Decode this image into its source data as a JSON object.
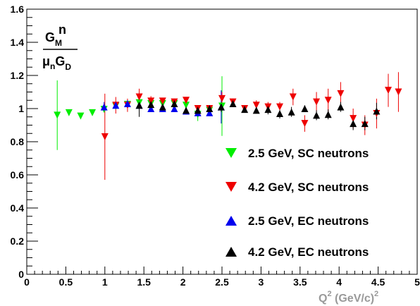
{
  "chart_data": {
    "type": "scatter",
    "title": "",
    "xlabel": {
      "main": "Q",
      "sup1": "2",
      "unit": " (GeV/c)",
      "sup2": "2"
    },
    "ylabel": {
      "num_main": "G",
      "num_sub": "M",
      "num_sup": "n",
      "den_mu": "μ",
      "den_mu_sub": "n",
      "den_main": "G",
      "den_sub": "D"
    },
    "xlim": [
      0,
      5
    ],
    "ylim": [
      0,
      1.6
    ],
    "x_ticks": [
      {
        "v": 0,
        "label": "0"
      },
      {
        "v": 0.5,
        "label": "0.5"
      },
      {
        "v": 1,
        "label": "1"
      },
      {
        "v": 1.5,
        "label": "1.5"
      },
      {
        "v": 2,
        "label": "2"
      },
      {
        "v": 2.5,
        "label": "2.5"
      },
      {
        "v": 3,
        "label": "3"
      },
      {
        "v": 3.5,
        "label": "3.5"
      },
      {
        "v": 4,
        "label": "4"
      },
      {
        "v": 4.5,
        "label": "4.5"
      },
      {
        "v": 5,
        "label": "5"
      }
    ],
    "y_ticks": [
      {
        "v": 0,
        "label": "0"
      },
      {
        "v": 0.2,
        "label": "0.2"
      },
      {
        "v": 0.4,
        "label": "0.4"
      },
      {
        "v": 0.6,
        "label": "0.6"
      },
      {
        "v": 0.8,
        "label": "0.8"
      },
      {
        "v": 1,
        "label": "1"
      },
      {
        "v": 1.2,
        "label": "1.2"
      },
      {
        "v": 1.4,
        "label": "1.4"
      },
      {
        "v": 1.6,
        "label": "1.6"
      }
    ],
    "grid": false,
    "legend_position": "bottom-right",
    "series": [
      {
        "name": "2.5 GeV, SC neutrons",
        "color": "#00ee00",
        "marker": "triangle-down",
        "points": [
          {
            "x": 0.39,
            "y": 0.96,
            "err": 0.21
          },
          {
            "x": 0.54,
            "y": 0.975,
            "err": 0.01
          },
          {
            "x": 0.69,
            "y": 0.955,
            "err": 0.01
          },
          {
            "x": 0.84,
            "y": 0.975,
            "err": 0.01
          },
          {
            "x": 0.99,
            "y": 0.995,
            "err": 0.01
          },
          {
            "x": 1.14,
            "y": 1.015,
            "err": 0.01
          },
          {
            "x": 1.29,
            "y": 1.025,
            "err": 0.01
          },
          {
            "x": 1.44,
            "y": 1.035,
            "err": 0.01
          },
          {
            "x": 1.59,
            "y": 1.03,
            "err": 0.01
          },
          {
            "x": 1.74,
            "y": 1.03,
            "err": 0.01
          },
          {
            "x": 1.89,
            "y": 1.03,
            "err": 0.01
          },
          {
            "x": 2.04,
            "y": 1.02,
            "err": 0.01
          },
          {
            "x": 2.19,
            "y": 0.965,
            "err": 0.04
          },
          {
            "x": 2.34,
            "y": 0.99,
            "err": 0.03
          },
          {
            "x": 2.5,
            "y": 1.015,
            "err": 0.18
          }
        ]
      },
      {
        "name": "4.2 GeV, SC neutrons",
        "color": "#ee0000",
        "marker": "triangle-down",
        "points": [
          {
            "x": 1.0,
            "y": 0.83,
            "err": 0.26
          },
          {
            "x": 1.14,
            "y": 1.02,
            "err": 0.05
          },
          {
            "x": 1.29,
            "y": 1.02,
            "err": 0.04
          },
          {
            "x": 1.44,
            "y": 1.07,
            "err": 0.05
          },
          {
            "x": 1.59,
            "y": 1.045,
            "err": 0.03
          },
          {
            "x": 1.74,
            "y": 1.045,
            "err": 0.02
          },
          {
            "x": 1.89,
            "y": 1.04,
            "err": 0.02
          },
          {
            "x": 2.04,
            "y": 1.05,
            "err": 0.02
          },
          {
            "x": 2.19,
            "y": 1.0,
            "err": 0.02
          },
          {
            "x": 2.34,
            "y": 1.0,
            "err": 0.02
          },
          {
            "x": 2.5,
            "y": 1.06,
            "err": 0.04
          },
          {
            "x": 2.64,
            "y": 1.04,
            "err": 0.02
          },
          {
            "x": 2.79,
            "y": 1.0,
            "err": 0.02
          },
          {
            "x": 2.94,
            "y": 1.02,
            "err": 0.03
          },
          {
            "x": 3.09,
            "y": 1.01,
            "err": 0.03
          },
          {
            "x": 3.24,
            "y": 1.01,
            "err": 0.03
          },
          {
            "x": 3.41,
            "y": 1.07,
            "err": 0.05
          },
          {
            "x": 3.56,
            "y": 0.91,
            "err": 0.05
          },
          {
            "x": 3.71,
            "y": 1.04,
            "err": 0.06
          },
          {
            "x": 3.86,
            "y": 1.05,
            "err": 0.07
          },
          {
            "x": 4.02,
            "y": 1.09,
            "err": 0.07
          },
          {
            "x": 4.18,
            "y": 0.94,
            "err": 0.06
          },
          {
            "x": 4.33,
            "y": 0.9,
            "err": 0.06
          },
          {
            "x": 4.48,
            "y": 0.97,
            "err": 0.09
          },
          {
            "x": 4.63,
            "y": 1.11,
            "err": 0.1
          },
          {
            "x": 4.76,
            "y": 1.1,
            "err": 0.12
          }
        ]
      },
      {
        "name": "2.5 GeV, EC neutrons",
        "color": "#0000ee",
        "marker": "triangle-up",
        "points": [
          {
            "x": 0.99,
            "y": 1.01,
            "err": 0.03
          },
          {
            "x": 1.14,
            "y": 1.02,
            "err": 0.02
          },
          {
            "x": 1.29,
            "y": 1.03,
            "err": 0.02
          },
          {
            "x": 1.44,
            "y": 1.02,
            "err": 0.02
          },
          {
            "x": 1.59,
            "y": 1.0,
            "err": 0.02
          },
          {
            "x": 1.74,
            "y": 1.0,
            "err": 0.02
          },
          {
            "x": 1.89,
            "y": 1.0,
            "err": 0.02
          },
          {
            "x": 2.04,
            "y": 0.985,
            "err": 0.02
          },
          {
            "x": 2.19,
            "y": 0.975,
            "err": 0.02
          },
          {
            "x": 2.34,
            "y": 0.975,
            "err": 0.02
          },
          {
            "x": 2.49,
            "y": 1.01,
            "err": 0.1
          }
        ]
      },
      {
        "name": "4.2 GeV, EC neutrons",
        "color": "#000000",
        "marker": "triangle-up",
        "points": [
          {
            "x": 1.44,
            "y": 1.02,
            "err": 0.07
          },
          {
            "x": 1.59,
            "y": 1.025,
            "err": 0.03
          },
          {
            "x": 1.74,
            "y": 1.01,
            "err": 0.03
          },
          {
            "x": 1.89,
            "y": 1.03,
            "err": 0.02
          },
          {
            "x": 2.04,
            "y": 0.99,
            "err": 0.02
          },
          {
            "x": 2.19,
            "y": 0.99,
            "err": 0.02
          },
          {
            "x": 2.34,
            "y": 1.0,
            "err": 0.02
          },
          {
            "x": 2.49,
            "y": 1.01,
            "err": 0.03
          },
          {
            "x": 2.64,
            "y": 1.03,
            "err": 0.02
          },
          {
            "x": 2.79,
            "y": 0.995,
            "err": 0.02
          },
          {
            "x": 2.94,
            "y": 0.99,
            "err": 0.02
          },
          {
            "x": 3.09,
            "y": 0.995,
            "err": 0.03
          },
          {
            "x": 3.24,
            "y": 0.97,
            "err": 0.03
          },
          {
            "x": 3.39,
            "y": 0.98,
            "err": 0.03
          },
          {
            "x": 3.56,
            "y": 1.0,
            "err": 0.02
          },
          {
            "x": 3.71,
            "y": 0.96,
            "err": 0.03
          },
          {
            "x": 3.86,
            "y": 0.965,
            "err": 0.03
          },
          {
            "x": 4.02,
            "y": 1.01,
            "err": 0.03
          },
          {
            "x": 4.18,
            "y": 0.91,
            "err": 0.04
          },
          {
            "x": 4.33,
            "y": 0.91,
            "err": 0.04
          },
          {
            "x": 4.48,
            "y": 0.985,
            "err": 0.05
          }
        ]
      }
    ]
  }
}
